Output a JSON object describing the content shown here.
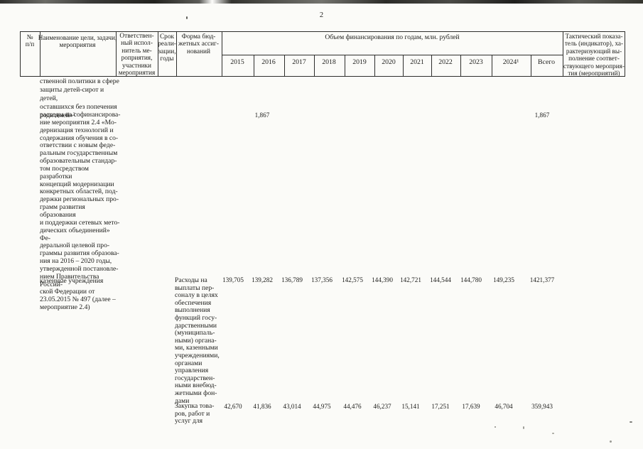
{
  "page": {
    "number": "2"
  },
  "colors": {
    "background": "#fbfbf8",
    "text": "#1d1d1b",
    "table_border": "#2e2e2c",
    "scan_band": "#3a3a38"
  },
  "table": {
    "header": {
      "num": "№\nп/п",
      "name": "Наименование цели, задачи,\nмероприятия",
      "responsible": "Ответствен-\nный испол-\nнитель ме-\nроприятия,\nучастники\nмероприятия",
      "term": "Срок\nреали-\nзации,\nгоды",
      "budget_form": "Форма бюд-\nжетных ассиг-\nнований",
      "funding_title": "Объем финансирования по годам, млн. рублей",
      "year_cols": [
        "2015",
        "2016",
        "2017",
        "2018",
        "2019",
        "2020",
        "2021",
        "2022",
        "2023",
        "2024¹",
        "Всего"
      ],
      "indicator": "Тактический показа-\nтель (индикатор), ха-\nрактеризующий вы-\nполнение соответ-\nствующего мероприя-\nтия (мероприятий)"
    },
    "rows": [
      {
        "name_text": "ственной политики в сфере\nзащиты детей-сирот и детей,\nоставшихся без попечения\nродителей»²"
      },
      {
        "name_text": "расходы на софинансирова-\nние мероприятия 2.4 «Мо-\nдернизация технологий и\nсодержания обучения в со-\nответствии с новым феде-\nральным государственным\nобразовательным стандар-\nтом посредством разработки\nконцепций модернизации\nконкретных областей, под-\nдержки региональных про-\nграмм развития образования\nи поддержки сетевых мето-\nдических объединений» Фе-\nдеральной целевой про-\nграммы развития образова-\nния на 2016 – 2020 годы,\nутвержденной постановле-\nнием Правительства Россий-\nской Федерации от\n23.05.2015 № 497 (далее –\nмероприятие 2.4)",
        "values": [
          "",
          "1,867",
          "",
          "",
          "",
          "",
          "",
          "",
          "",
          "",
          "1,867"
        ]
      },
      {
        "name_text": "казенные учреждения",
        "budget_form": "Расходы на\nвыплаты пер-\nсоналу в целях\nобеспечения\nвыполнения\nфункций госу-\nдарственными\n(муниципаль-\nными) органа-\nми, казенными\nучреждениями,\nорганами\nуправления\nгосударствен-\nными внебюд-\nжетными фон-\nдами",
        "values": [
          "139,705",
          "139,282",
          "136,789",
          "137,356",
          "142,575",
          "144,390",
          "142,721",
          "144,544",
          "144,780",
          "149,235",
          "1421,377"
        ]
      },
      {
        "budget_form": "Закупка това-\nров, работ и\nуслуг для",
        "values": [
          "42,670",
          "41,836",
          "43,014",
          "44,975",
          "44,476",
          "46,237",
          "15,141",
          "17,251",
          "17,639",
          "46,704",
          "359,943"
        ]
      }
    ]
  }
}
